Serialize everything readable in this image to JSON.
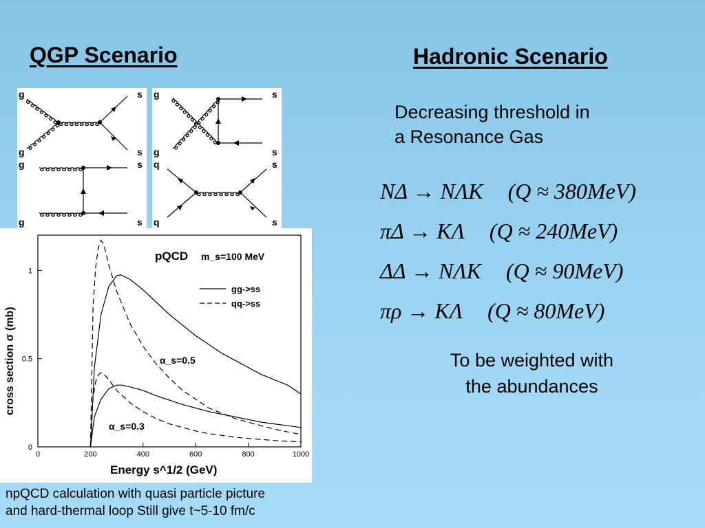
{
  "left_title": "QGP Scenario",
  "right_title": "Hadronic Scenario",
  "diagrams": [
    {
      "tl": "g",
      "tr": "s",
      "bl": "g",
      "br": "s"
    },
    {
      "tl": "g",
      "tr": "s",
      "bl": "g",
      "br": "s"
    },
    {
      "tl": "g",
      "tr": "s",
      "bl": "g",
      "br": "s"
    },
    {
      "tl": "q",
      "tr": "s",
      "bl": "q",
      "br": "s"
    }
  ],
  "threshold_lines": [
    "Decreasing threshold in",
    "a Resonance Gas"
  ],
  "reactions": [
    {
      "lhs": "NΔ → NΛK",
      "q": "(Q ≈ 380MeV)"
    },
    {
      "lhs": "πΔ → KΛ",
      "q": "(Q ≈ 240MeV)"
    },
    {
      "lhs": "ΔΔ → NΛK",
      "q": "(Q ≈ 90MeV)"
    },
    {
      "lhs": "πρ → KΛ",
      "q": "(Q ≈ 80MeV)"
    }
  ],
  "weighted_lines": [
    "To be weighted with",
    "the abundances"
  ],
  "note_lines": [
    "npQCD calculation with quasi particle picture",
    "and hard-thermal loop  Still give t~5-10 fm/c"
  ],
  "chart_data": {
    "type": "line",
    "title": "pQCD",
    "subtitle": "m_s=100 MeV",
    "xlabel": "Energy s^1/2 (GeV)",
    "ylabel": "cross section σ (mb)",
    "xlim": [
      0,
      1000
    ],
    "ylim": [
      0,
      1.2
    ],
    "xticks": [
      0,
      200,
      400,
      600,
      800,
      1000
    ],
    "yticks": [
      0,
      0.5,
      1
    ],
    "grid": false,
    "legend": "top-right",
    "legend_entries": [
      {
        "label": "gg->ss",
        "style": "solid"
      },
      {
        "label": "qq->ss",
        "style": "dashed"
      }
    ],
    "annotations": [
      "α_s=0.5",
      "α_s=0.3"
    ],
    "series": [
      {
        "process": "gg",
        "alpha_s": 0.5,
        "style": "solid",
        "x": [
          200,
          215,
          240,
          270,
          300,
          315,
          350,
          400,
          450,
          500,
          550,
          600,
          650,
          700,
          750,
          800,
          850,
          900,
          950,
          1000
        ],
        "y": [
          0,
          0.45,
          0.75,
          0.91,
          0.97,
          0.975,
          0.95,
          0.89,
          0.82,
          0.75,
          0.69,
          0.63,
          0.58,
          0.53,
          0.49,
          0.45,
          0.41,
          0.38,
          0.35,
          0.3
        ]
      },
      {
        "process": "qq",
        "alpha_s": 0.5,
        "style": "dashed",
        "x": [
          200,
          210,
          220,
          230,
          240,
          250,
          270,
          300,
          350,
          400,
          450,
          500,
          550,
          600,
          650,
          700,
          750,
          800,
          850,
          900,
          950,
          1000
        ],
        "y": [
          0,
          0.8,
          1.02,
          1.13,
          1.17,
          1.15,
          1.03,
          0.88,
          0.7,
          0.57,
          0.47,
          0.39,
          0.32,
          0.27,
          0.22,
          0.19,
          0.16,
          0.14,
          0.12,
          0.1,
          0.085,
          0.07
        ]
      },
      {
        "process": "gg",
        "alpha_s": 0.3,
        "style": "solid",
        "x": [
          200,
          215,
          240,
          270,
          300,
          320,
          350,
          400,
          450,
          500,
          550,
          600,
          650,
          700,
          750,
          800,
          850,
          900,
          950,
          1000
        ],
        "y": [
          0,
          0.17,
          0.27,
          0.33,
          0.35,
          0.35,
          0.34,
          0.32,
          0.29,
          0.265,
          0.24,
          0.22,
          0.2,
          0.185,
          0.17,
          0.155,
          0.14,
          0.13,
          0.12,
          0.11
        ]
      },
      {
        "process": "qq",
        "alpha_s": 0.3,
        "style": "dashed",
        "x": [
          200,
          210,
          220,
          230,
          240,
          250,
          270,
          300,
          350,
          400,
          450,
          500,
          550,
          600,
          650,
          700,
          750,
          800,
          850,
          900,
          950,
          1000
        ],
        "y": [
          0,
          0.28,
          0.37,
          0.41,
          0.42,
          0.415,
          0.38,
          0.32,
          0.25,
          0.2,
          0.16,
          0.13,
          0.11,
          0.09,
          0.075,
          0.065,
          0.055,
          0.048,
          0.042,
          0.036,
          0.032,
          0.028
        ]
      }
    ]
  }
}
